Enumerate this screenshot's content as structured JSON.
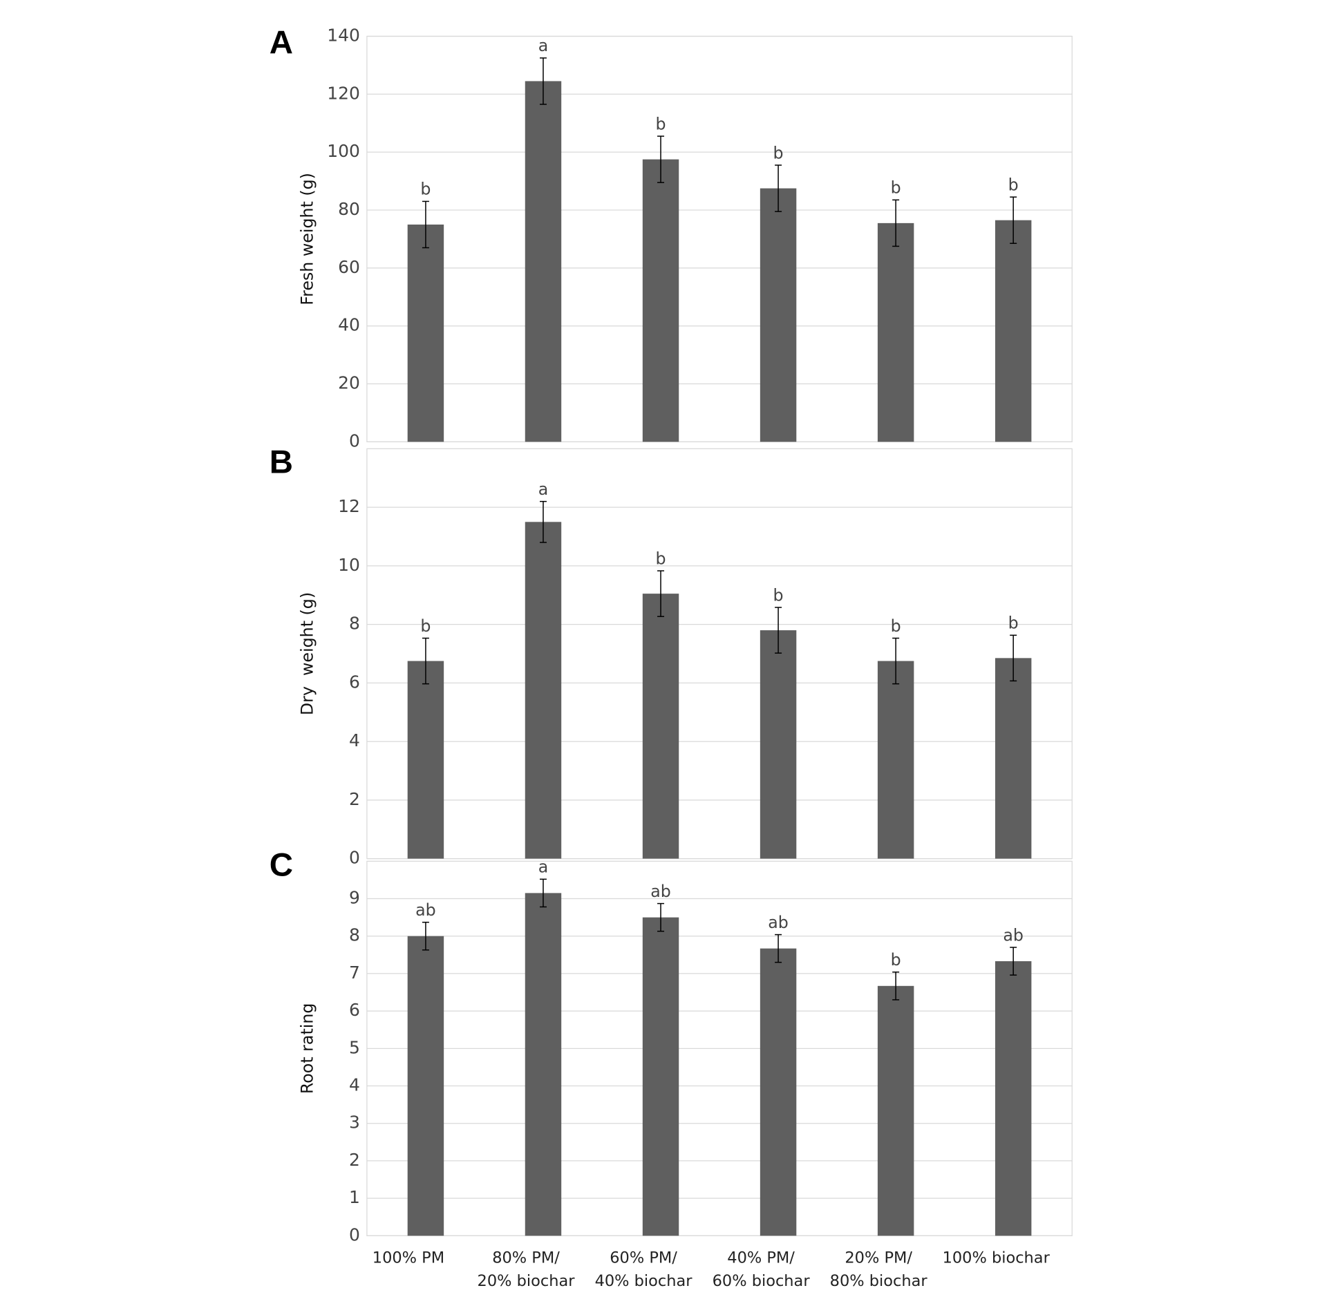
{
  "chart_data": [
    {
      "type": "bar",
      "panel": "A",
      "ylabel": "Fresh weight (g)",
      "values": [
        75,
        124.5,
        97.5,
        87.5,
        75.5,
        76.5
      ],
      "errors": [
        8,
        8,
        8,
        8,
        8,
        8
      ],
      "annotations": [
        "b",
        "a",
        "b",
        "b",
        "b",
        "b"
      ],
      "color": "#5f5f5f",
      "ylim": [
        0,
        140
      ],
      "yticks": [
        0,
        20,
        40,
        60,
        80,
        100,
        120,
        140
      ],
      "grid": true
    },
    {
      "type": "bar",
      "panel": "B",
      "ylabel": "Dry  weight (g)",
      "values": [
        6.75,
        11.5,
        9.05,
        7.8,
        6.75,
        6.85
      ],
      "errors": [
        0.78,
        0.7,
        0.78,
        0.78,
        0.78,
        0.78
      ],
      "annotations": [
        "b",
        "a",
        "b",
        "b",
        "b",
        "b"
      ],
      "color": "#5f5f5f",
      "ylim": [
        0,
        14
      ],
      "yticks": [
        0,
        2,
        4,
        6,
        8,
        10,
        12
      ],
      "grid": true
    },
    {
      "type": "bar",
      "panel": "C",
      "ylabel": "Root rating",
      "categories": [
        [
          "100% PM"
        ],
        [
          "80% PM/",
          "20% biochar"
        ],
        [
          "60% PM/",
          "40% biochar"
        ],
        [
          "40% PM/",
          "60% biochar"
        ],
        [
          "20% PM/",
          "80% biochar"
        ],
        [
          "100% biochar"
        ]
      ],
      "values": [
        8.0,
        9.15,
        8.5,
        7.67,
        6.67,
        7.33
      ],
      "errors": [
        0.37,
        0.37,
        0.37,
        0.37,
        0.37,
        0.37
      ],
      "annotations": [
        "ab",
        "a",
        "ab",
        "ab",
        "b",
        "ab"
      ],
      "color": "#5f5f5f",
      "ylim": [
        0,
        10
      ],
      "yticks": [
        0,
        1,
        2,
        3,
        4,
        5,
        6,
        7,
        8,
        9
      ],
      "grid": true
    }
  ]
}
